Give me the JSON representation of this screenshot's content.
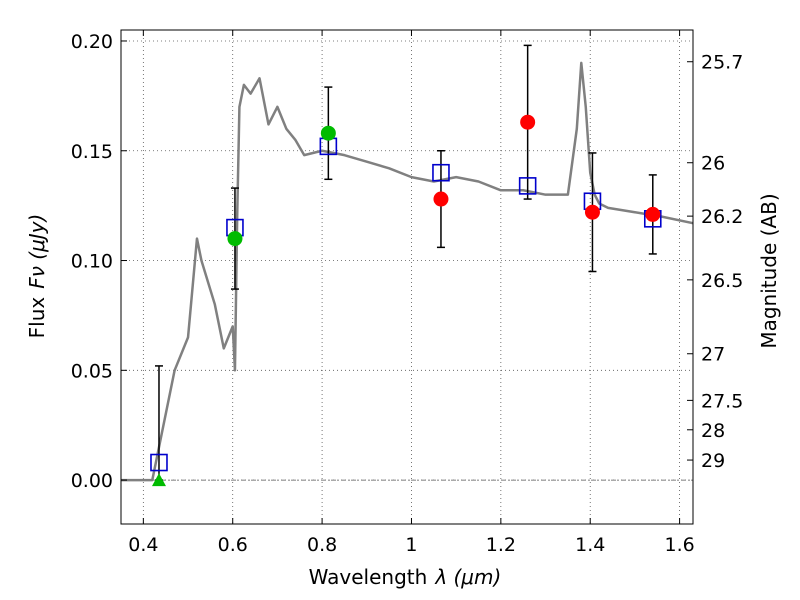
{
  "chart_data": {
    "type": "scatter",
    "xlabel_text": "Wavelength",
    "xlabel_symbol": "λ (μm)",
    "ylabel_text": "Flux",
    "ylabel_symbol": "Fν (μJy)",
    "y2label": "Magnitude (AB)",
    "xlim": [
      0.35,
      1.63
    ],
    "ylim": [
      -0.02,
      0.205
    ],
    "x_ticks": [
      0.4,
      0.6,
      0.8,
      1.0,
      1.2,
      1.4,
      1.6
    ],
    "x_tick_labels": [
      "0.4",
      "0.6",
      "0.8",
      "1",
      "1.2",
      "1.4",
      "1.6"
    ],
    "y_ticks": [
      0.0,
      0.05,
      0.1,
      0.15,
      0.2
    ],
    "y_tick_labels": [
      "0.00",
      "0.05",
      "0.10",
      "0.15",
      "0.20"
    ],
    "mag_ticks": [
      25.7,
      26.0,
      26.2,
      26.5,
      27.0,
      27.5,
      28.0,
      29.0
    ],
    "mag_tick_labels": [
      "25.7",
      "26",
      "26.2",
      "26.5",
      "27",
      "27.5",
      "28",
      "29"
    ],
    "grid": true,
    "colors": {
      "model": "#808080",
      "model_bands": "#0000cc",
      "observed_hst": "#ff0000",
      "observed_other": "#00bb00",
      "errorbar": "#000000"
    },
    "model_sed": {
      "x": [
        0.35,
        0.42,
        0.45,
        0.47,
        0.5,
        0.52,
        0.53,
        0.545,
        0.56,
        0.58,
        0.6,
        0.605,
        0.61,
        0.615,
        0.625,
        0.64,
        0.66,
        0.68,
        0.7,
        0.72,
        0.74,
        0.76,
        0.8,
        0.85,
        0.9,
        0.95,
        1.0,
        1.05,
        1.1,
        1.15,
        1.2,
        1.25,
        1.3,
        1.35,
        1.37,
        1.38,
        1.39,
        1.4,
        1.41,
        1.42,
        1.44,
        1.5,
        1.56,
        1.63
      ],
      "y": [
        0.0,
        0.0,
        0.03,
        0.05,
        0.065,
        0.11,
        0.1,
        0.09,
        0.08,
        0.06,
        0.07,
        0.05,
        0.12,
        0.17,
        0.18,
        0.176,
        0.183,
        0.162,
        0.17,
        0.16,
        0.155,
        0.148,
        0.15,
        0.148,
        0.145,
        0.142,
        0.138,
        0.136,
        0.138,
        0.136,
        0.132,
        0.132,
        0.13,
        0.13,
        0.16,
        0.19,
        0.17,
        0.14,
        0.13,
        0.126,
        0.124,
        0.122,
        0.12,
        0.117
      ]
    },
    "model_bands": {
      "x": [
        0.435,
        0.605,
        0.814,
        1.066,
        1.26,
        1.405,
        1.54
      ],
      "y": [
        0.008,
        0.115,
        0.152,
        0.14,
        0.134,
        0.127,
        0.119
      ]
    },
    "observed_hst": {
      "x": [
        1.066,
        1.26,
        1.405,
        1.54
      ],
      "y": [
        0.128,
        0.163,
        0.122,
        0.121
      ],
      "yerr": [
        0.022,
        0.035,
        0.027,
        0.018
      ]
    },
    "observed_other": {
      "x": [
        0.605,
        0.814
      ],
      "y": [
        0.11,
        0.158
      ],
      "yerr": [
        0.023,
        0.021
      ]
    },
    "upper_limit": {
      "x": [
        0.435
      ],
      "y": [
        0.0
      ],
      "err_top": [
        0.052
      ]
    }
  }
}
